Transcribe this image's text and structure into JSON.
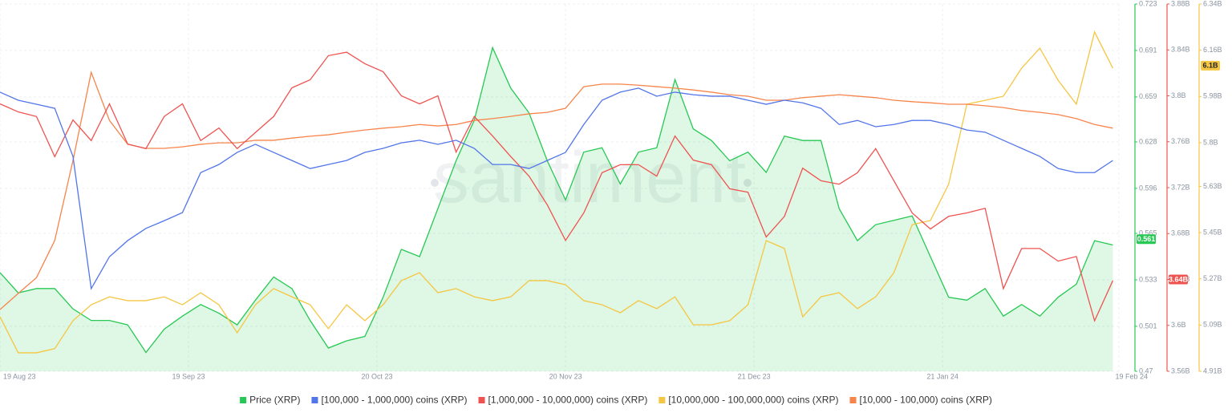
{
  "chart_data": {
    "type": "line",
    "watermark": "santiment",
    "x": [
      0,
      3,
      6,
      9,
      12,
      15,
      18,
      21,
      24,
      27,
      30,
      33,
      36,
      39,
      42,
      45,
      48,
      51,
      54,
      57,
      60,
      63,
      66,
      69,
      72,
      75,
      78,
      81,
      84,
      87,
      90,
      93,
      96,
      99,
      102,
      105,
      108,
      111,
      114,
      117,
      120,
      123,
      126,
      129,
      132,
      135,
      138,
      141,
      144,
      147,
      150,
      153,
      156,
      159,
      162,
      165,
      168,
      171,
      174,
      177,
      180,
      183
    ],
    "xlim": [
      0,
      184
    ],
    "xticks": [
      {
        "value": 0,
        "label": "19 Aug 23"
      },
      {
        "value": 31,
        "label": "19 Sep 23"
      },
      {
        "value": 62,
        "label": "20 Oct 23"
      },
      {
        "value": 93,
        "label": "20 Nov 23"
      },
      {
        "value": 124,
        "label": "21 Dec 23"
      },
      {
        "value": 155,
        "label": "21 Jan 24"
      },
      {
        "value": 184,
        "label": "19 Feb 24"
      }
    ],
    "grid": true,
    "ylim": [
      0.47,
      0.723
    ],
    "yticks": [
      0.723,
      0.691,
      0.659,
      0.628,
      0.596,
      0.565,
      0.533,
      0.501,
      0.47
    ],
    "y2lim": [
      3560000000,
      3880000000
    ],
    "y2ticks": [
      {
        "value": 3880000000,
        "label": "3.88B"
      },
      {
        "value": 3840000000,
        "label": "3.84B"
      },
      {
        "value": 3800000000,
        "label": "3.8B"
      },
      {
        "value": 3760000000,
        "label": "3.76B"
      },
      {
        "value": 3720000000,
        "label": "3.72B"
      },
      {
        "value": 3680000000,
        "label": "3.68B"
      },
      {
        "value": 3640000000,
        "label": "3.64B"
      },
      {
        "value": 3600000000,
        "label": "3.6B"
      },
      {
        "value": 3560000000,
        "label": "3.56B"
      }
    ],
    "y3lim": [
      4910000000,
      6340000000
    ],
    "y3ticks": [
      {
        "value": 6340000000,
        "label": "6.34B"
      },
      {
        "value": 6160000000,
        "label": "6.16B"
      },
      {
        "value": 5980000000,
        "label": "5.98B"
      },
      {
        "value": 5800000000,
        "label": "5.8B"
      },
      {
        "value": 5630000000,
        "label": "5.63B"
      },
      {
        "value": 5450000000,
        "label": "5.45B"
      },
      {
        "value": 5270000000,
        "label": "5.27B"
      },
      {
        "value": 5090000000,
        "label": "5.09B"
      },
      {
        "value": 4910000000,
        "label": "4.91B"
      }
    ],
    "y4lim": [
      0,
      100
    ],
    "y5lim": [
      0,
      100
    ],
    "series": [
      {
        "name": "Price (XRP)",
        "color": "#26c953",
        "axis": "y",
        "area": true,
        "current": {
          "value": 0.561,
          "label": "0.561"
        },
        "values": [
          0.538,
          0.524,
          0.527,
          0.527,
          0.513,
          0.505,
          0.505,
          0.502,
          0.483,
          0.499,
          0.508,
          0.516,
          0.51,
          0.502,
          0.519,
          0.535,
          0.527,
          0.505,
          0.486,
          0.491,
          0.494,
          0.521,
          0.554,
          0.549,
          0.582,
          0.615,
          0.643,
          0.693,
          0.665,
          0.648,
          0.615,
          0.588,
          0.621,
          0.624,
          0.599,
          0.621,
          0.624,
          0.671,
          0.637,
          0.629,
          0.615,
          0.621,
          0.607,
          0.632,
          0.629,
          0.629,
          0.582,
          0.56,
          0.571,
          0.574,
          0.577,
          0.549,
          0.521,
          0.519,
          0.527,
          0.508,
          0.516,
          0.508,
          0.521,
          0.53,
          0.56,
          0.557
        ]
      },
      {
        "name": "[100,000 - 1,000,000) coins (XRP)",
        "color": "#5275e9",
        "axis": "y4",
        "values": [
          76.0,
          73.8,
          72.7,
          71.6,
          58.5,
          22.5,
          31.2,
          35.6,
          38.9,
          41.0,
          43.2,
          54.1,
          56.3,
          59.6,
          61.8,
          59.6,
          57.4,
          55.2,
          56.3,
          57.4,
          59.6,
          60.7,
          62.2,
          62.9,
          61.8,
          62.9,
          60.7,
          56.3,
          56.3,
          55.2,
          57.4,
          59.6,
          67.2,
          73.8,
          76.0,
          77.1,
          74.9,
          76.0,
          75.3,
          74.9,
          74.9,
          73.8,
          72.7,
          73.8,
          73.1,
          71.6,
          67.2,
          68.3,
          66.6,
          67.2,
          68.3,
          68.3,
          67.2,
          65.7,
          65.1,
          62.9,
          60.7,
          58.5,
          55.2,
          54.1,
          54.1,
          57.4
        ]
      },
      {
        "name": "[1,000,000 - 10,000,000) coins (XRP)",
        "color": "#ef5350",
        "axis": "y2",
        "current": {
          "value": 3640000000,
          "label": "3.64B"
        },
        "values": [
          3793000000.0,
          3786000000.0,
          3782000000.0,
          3747000000.0,
          3779000000.0,
          3761000000.0,
          3793000000.0,
          3758000000.0,
          3754000000.0,
          3782000000.0,
          3793000000.0,
          3761000000.0,
          3772000000.0,
          3754000000.0,
          3768000000.0,
          3782000000.0,
          3807000000.0,
          3814000000.0,
          3835000000.0,
          3838000000.0,
          3828000000.0,
          3821000000.0,
          3800000000.0,
          3793000000.0,
          3800000000.0,
          3751000000.0,
          3782000000.0,
          3765000000.0,
          3747000000.0,
          3730000000.0,
          3705000000.0,
          3674000000.0,
          3698000000.0,
          3733000000.0,
          3740000000.0,
          3740000000.0,
          3730000000.0,
          3765000000.0,
          3744000000.0,
          3740000000.0,
          3719000000.0,
          3716000000.0,
          3677000000.0,
          3695000000.0,
          3737000000.0,
          3726000000.0,
          3723000000.0,
          3733000000.0,
          3754000000.0,
          3726000000.0,
          3698000000.0,
          3684000000.0,
          3695000000.0,
          3698000000.0,
          3702000000.0,
          3632000000.0,
          3667000000.0,
          3667000000.0,
          3656000000.0,
          3660000000.0,
          3604000000.0,
          3639000000.0
        ]
      },
      {
        "name": "[10,000,000 - 100,000,000) coins (XRP)",
        "color": "#f5c642",
        "axis": "y3",
        "current": {
          "value": 6100000000,
          "label": "6.1B"
        },
        "values": [
          5122000000.0,
          4982000000.0,
          4982000000.0,
          4998000000.0,
          5107000000.0,
          5169000000.0,
          5200000000.0,
          5185000000.0,
          5185000000.0,
          5200000000.0,
          5169000000.0,
          5216000000.0,
          5169000000.0,
          5060000000.0,
          5169000000.0,
          5232000000.0,
          5200000000.0,
          5169000000.0,
          5076000000.0,
          5169000000.0,
          5107000000.0,
          5169000000.0,
          5263000000.0,
          5294000000.0,
          5216000000.0,
          5232000000.0,
          5200000000.0,
          5185000000.0,
          5200000000.0,
          5263000000.0,
          5263000000.0,
          5247000000.0,
          5185000000.0,
          5169000000.0,
          5138000000.0,
          5185000000.0,
          5154000000.0,
          5200000000.0,
          5091000000.0,
          5091000000.0,
          5107000000.0,
          5169000000.0,
          5419000000.0,
          5388000000.0,
          5122000000.0,
          5200000000.0,
          5216000000.0,
          5154000000.0,
          5200000000.0,
          5294000000.0,
          5481000000.0,
          5497000000.0,
          5638000000.0,
          5950000000.0,
          5965000000.0,
          5981000000.0,
          6090000000.0,
          6168000000.0,
          6043000000.0,
          5950000000.0,
          6231000000.0,
          6090000000.0
        ]
      },
      {
        "name": "[10,000 - 100,000) coins (XRP)",
        "color": "#f7844a",
        "axis": "y5",
        "values": [
          16.8,
          21.2,
          25.5,
          35.6,
          57.4,
          81.4,
          68.3,
          61.8,
          60.7,
          60.7,
          61.1,
          61.8,
          62.2,
          62.2,
          62.9,
          62.9,
          63.5,
          64.0,
          64.4,
          65.1,
          65.7,
          66.2,
          66.6,
          67.2,
          66.8,
          67.2,
          68.3,
          68.8,
          69.4,
          70.1,
          70.5,
          71.6,
          77.5,
          78.2,
          78.2,
          77.9,
          77.5,
          77.1,
          76.6,
          76.0,
          75.3,
          74.9,
          73.8,
          73.8,
          74.5,
          74.9,
          75.3,
          74.9,
          74.5,
          73.8,
          73.4,
          73.1,
          72.7,
          72.7,
          72.3,
          71.8,
          71.0,
          70.5,
          69.9,
          68.8,
          67.2,
          66.2
        ]
      }
    ]
  }
}
